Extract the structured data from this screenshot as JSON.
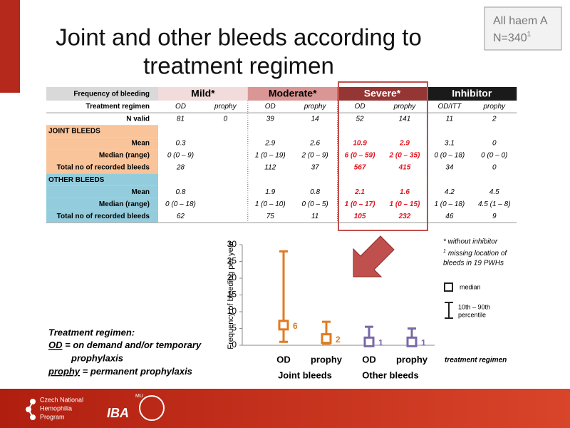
{
  "title": "Joint and other bleeds according to treatment regimen",
  "badge": {
    "line1": "All haem A",
    "line2": "N=340",
    "sup": "1"
  },
  "table": {
    "corner": "Frequency of bleeding",
    "groups": [
      "Mild*",
      "Moderate*",
      "Severe*",
      "Inhibitor"
    ],
    "regimen_label": "Treatment regimen",
    "regimens": [
      "OD",
      "prophy",
      "OD",
      "prophy",
      "OD",
      "prophy",
      "OD/ITT",
      "prophy"
    ],
    "rows": [
      {
        "label": "N valid",
        "cells": [
          81,
          0,
          39,
          14,
          52,
          141,
          11,
          2
        ]
      },
      {
        "section": "JOINT BLEEDS"
      },
      {
        "label": "Mean",
        "cells": [
          0.3,
          null,
          2.9,
          2.6,
          10.9,
          2.9,
          3.1,
          0
        ]
      },
      {
        "label": "Median (range)",
        "cells": [
          "0 (0 – 9)",
          null,
          "1 (0 – 19)",
          "2 (0 – 9)",
          "6 (0 – 59)",
          "2 (0 – 35)",
          "0 (0 – 18)",
          "0 (0 – 0)"
        ]
      },
      {
        "label": "Total no of recorded bleeds",
        "cells": [
          28,
          null,
          112,
          37,
          567,
          415,
          34,
          0
        ]
      },
      {
        "section": "OTHER BLEEDS"
      },
      {
        "label": "Mean",
        "cells": [
          0.8,
          null,
          1.9,
          0.8,
          2.1,
          1.6,
          4.2,
          4.5
        ]
      },
      {
        "label": "Median (range)",
        "cells": [
          "0 (0 – 18)",
          null,
          "1 (0 – 10)",
          "0 (0 – 5)",
          "1 (0 – 17)",
          "1 (0 – 15)",
          "1 (0 – 18)",
          "4.5 (1 – 8)"
        ]
      },
      {
        "label": "Total no of recorded bleeds",
        "cells": [
          62,
          null,
          75,
          11,
          105,
          232,
          46,
          9
        ]
      }
    ]
  },
  "notes": {
    "without": "* without inhibitor",
    "sup": "1",
    "missing": "missing location of bleeds in 19 PWHs"
  },
  "legend": {
    "median": "median",
    "range": "10th – 90th",
    "range2": "percentile"
  },
  "regimen_note": {
    "heading": "Treatment regimen:",
    "od": "OD",
    "od_text": " = on demand and/or temporary",
    "od_text2": "prophylaxis",
    "prophy": "prophy",
    "prophy_text": " = permanent prophylaxis"
  },
  "footer": {
    "program": "Czech National Hemophilia Program",
    "iba": "IBA",
    "mu": "MU"
  },
  "chart_data": {
    "type": "errorbar",
    "ylabel": "Frequency of bleeding per year",
    "xlabel": "treatment regimen",
    "categories": [
      "OD",
      "prophy",
      "OD",
      "prophy"
    ],
    "groups": [
      "Joint bleeds",
      "Other bleeds"
    ],
    "values": [
      6,
      2,
      1,
      1
    ],
    "low": [
      1,
      0.5,
      0,
      0
    ],
    "high": [
      28,
      7,
      5.5,
      5
    ],
    "colors": [
      "#e07b20",
      "#e07b20",
      "#7b68a8",
      "#7b68a8"
    ],
    "ylim": [
      0,
      30
    ],
    "yticks": [
      0,
      5,
      10,
      15,
      20,
      25,
      30
    ]
  }
}
